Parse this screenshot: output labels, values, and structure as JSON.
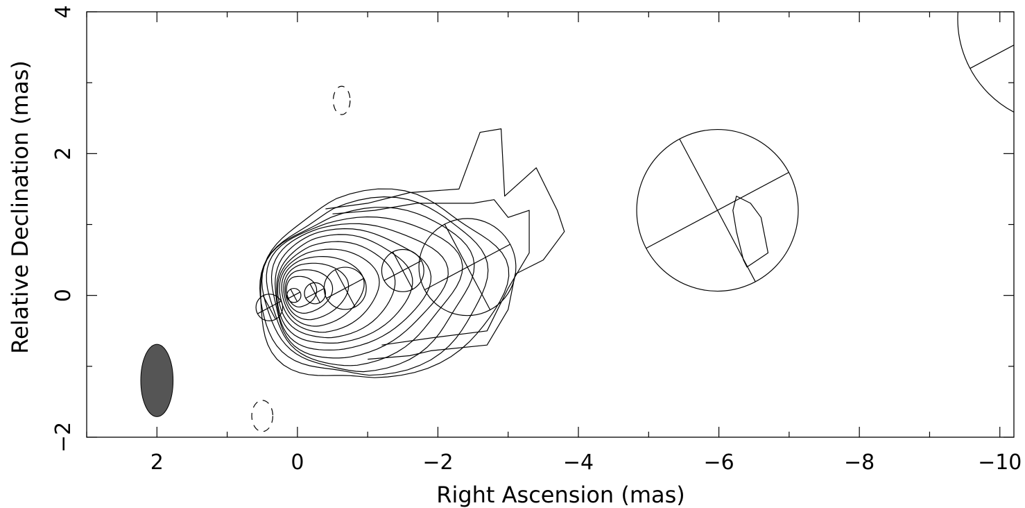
{
  "chart_data": {
    "type": "contour",
    "title": "",
    "xlabel": "Right Ascension  (mas)",
    "ylabel": "Relative Declination  (mas)",
    "xlim": [
      3.0,
      -10.2
    ],
    "ylim": [
      -2.0,
      4.0
    ],
    "x_ticks": [
      {
        "value": 2,
        "label": "2"
      },
      {
        "value": 0,
        "label": "0"
      },
      {
        "value": -2,
        "label": "−2"
      },
      {
        "value": -4,
        "label": "−4"
      },
      {
        "value": -6,
        "label": "−6"
      },
      {
        "value": -8,
        "label": "−8"
      },
      {
        "value": -10,
        "label": "−10"
      }
    ],
    "x_minor_step": 1,
    "y_ticks": [
      {
        "value": -2,
        "label": "−2"
      },
      {
        "value": 0,
        "label": "0"
      },
      {
        "value": 2,
        "label": "2"
      },
      {
        "value": 4,
        "label": "4"
      }
    ],
    "y_minor_step": 1,
    "core": {
      "x": 0.0,
      "y": 0.05
    },
    "contour_levels": 13,
    "components": [
      {
        "x": 0.4,
        "y": -0.17,
        "diameter": 0.38
      },
      {
        "x": 0.05,
        "y": 0.0,
        "diameter": 0.2
      },
      {
        "x": -0.25,
        "y": 0.03,
        "diameter": 0.3
      },
      {
        "x": -0.68,
        "y": 0.1,
        "diameter": 0.6
      },
      {
        "x": -1.5,
        "y": 0.35,
        "diameter": 0.6
      },
      {
        "x": -2.42,
        "y": 0.4,
        "diameter": 1.38
      },
      {
        "x": -5.98,
        "y": 1.2,
        "diameter": 2.3
      },
      {
        "x": -10.9,
        "y": 3.9,
        "diameter": 3.0
      }
    ],
    "beam": {
      "x": 2.0,
      "y": -1.2,
      "major": 1.02,
      "minor": 0.46,
      "pa_deg": 0,
      "color": "#555555"
    }
  }
}
